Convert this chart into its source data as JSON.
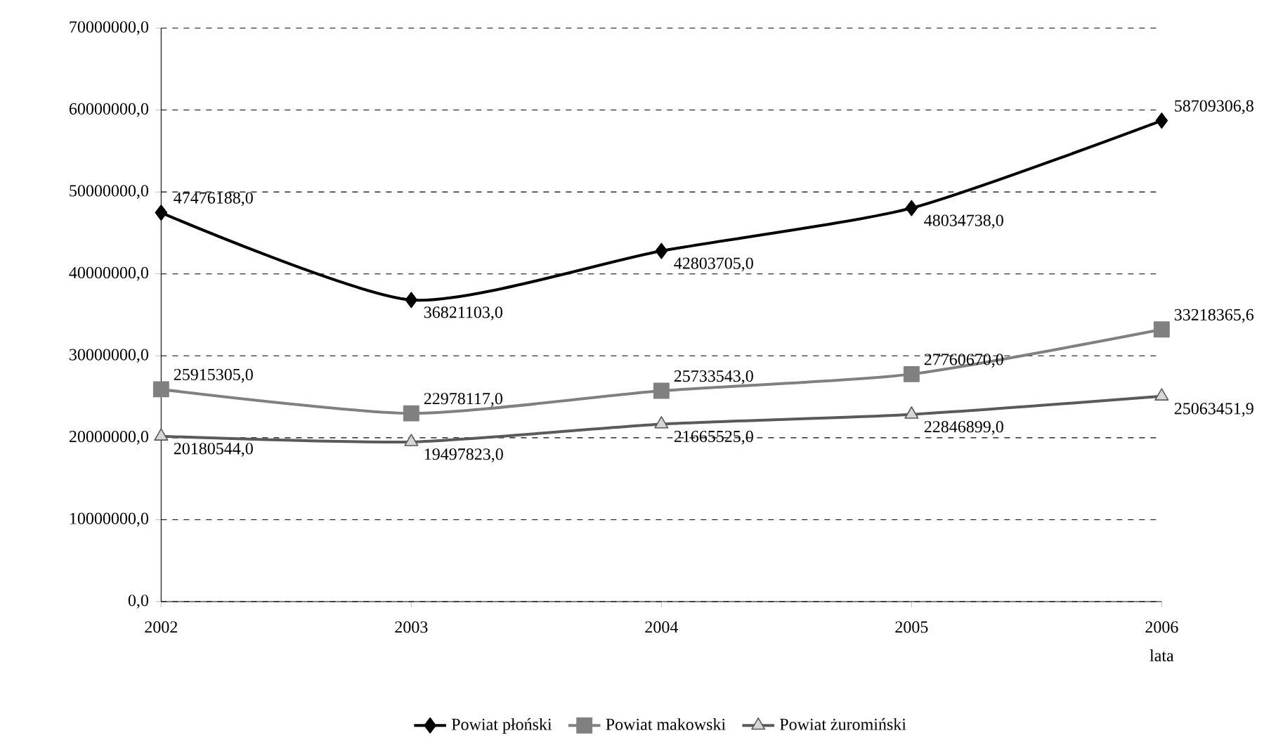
{
  "chart_data": {
    "type": "line",
    "categories": [
      "2002",
      "2003",
      "2004",
      "2005",
      "2006"
    ],
    "xlabel": "lata",
    "ylim": [
      0,
      70000000
    ],
    "yticks": [
      {
        "value": 0,
        "label": "0,0"
      },
      {
        "value": 10000000,
        "label": "10000000,0"
      },
      {
        "value": 20000000,
        "label": "20000000,0"
      },
      {
        "value": 30000000,
        "label": "30000000,0"
      },
      {
        "value": 40000000,
        "label": "40000000,0"
      },
      {
        "value": 50000000,
        "label": "50000000,0"
      },
      {
        "value": 60000000,
        "label": "60000000,0"
      },
      {
        "value": 70000000,
        "label": "70000000,0"
      }
    ],
    "grid": "y",
    "legend": "bottom",
    "line_style": "solid",
    "series": [
      {
        "name": "Powiat płoński",
        "color": "#000000",
        "marker": "diamond",
        "values": [
          47476188.0,
          36821103.0,
          42803705.0,
          48034738.0,
          58709306.8
        ],
        "value_labels": [
          "47476188,0",
          "36821103,0",
          "42803705,0",
          "48034738,0",
          "58709306,8"
        ]
      },
      {
        "name": "Powiat makowski",
        "color": "#808080",
        "marker": "square",
        "values": [
          25915305.0,
          22978117.0,
          25733543.0,
          27760670.0,
          33218365.6
        ],
        "value_labels": [
          "25915305,0",
          "22978117,0",
          "25733543,0",
          "27760670,0",
          "33218365,6"
        ]
      },
      {
        "name": "Powiat żuromiński",
        "color": "#5a5a5a",
        "marker": "triangle",
        "values": [
          20180544.0,
          19497823.0,
          21665525.0,
          22846899.0,
          25063451.9
        ],
        "value_labels": [
          "20180544,0",
          "19497823,0",
          "21665525,0",
          "22846899,0",
          "25063451,9"
        ]
      }
    ]
  }
}
